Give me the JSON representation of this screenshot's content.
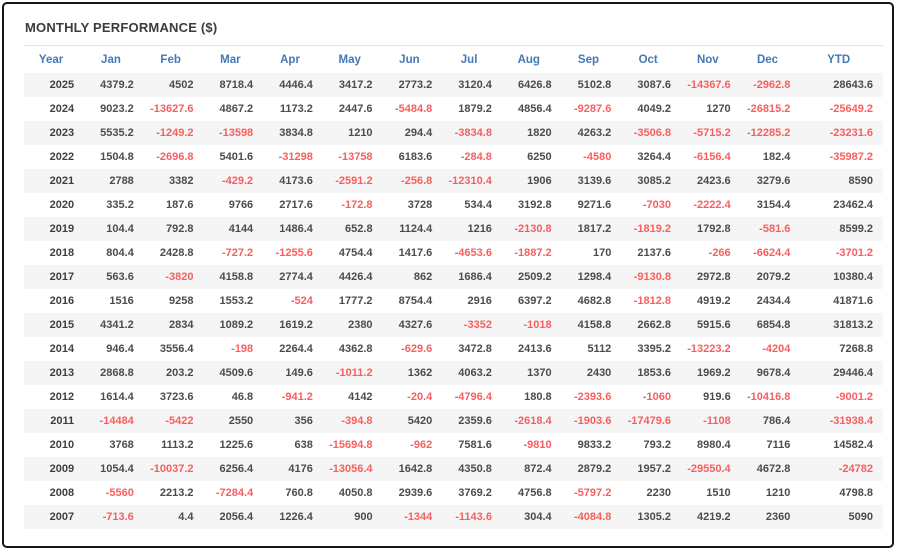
{
  "title": "MONTHLY PERFORMANCE ($)",
  "colors": {
    "header_blue": "#4478b6",
    "negative_red": "#f75f5f",
    "value_gray": "#4c4c4c",
    "year_dark": "#3f3f3f",
    "stripe": "#f5f5f5",
    "frame": "#151515"
  },
  "chart_data": {
    "type": "table",
    "title": "MONTHLY PERFORMANCE ($)",
    "columns": [
      "Year",
      "Jan",
      "Feb",
      "Mar",
      "Apr",
      "May",
      "Jun",
      "Jul",
      "Aug",
      "Sep",
      "Oct",
      "Nov",
      "Dec",
      "YTD"
    ],
    "rows": [
      {
        "year": "2025",
        "values": [
          "4379.2",
          "4502",
          "8718.4",
          "4446.4",
          "3417.2",
          "2773.2",
          "3120.4",
          "6426.8",
          "5102.8",
          "3087.6",
          "-14367.6",
          "-2962.8",
          "28643.6"
        ]
      },
      {
        "year": "2024",
        "values": [
          "9023.2",
          "-13627.6",
          "4867.2",
          "1173.2",
          "2447.6",
          "-5484.8",
          "1879.2",
          "4856.4",
          "-9287.6",
          "4049.2",
          "1270",
          "-26815.2",
          "-25649.2"
        ]
      },
      {
        "year": "2023",
        "values": [
          "5535.2",
          "-1249.2",
          "-13598",
          "3834.8",
          "1210",
          "294.4",
          "-3834.8",
          "1820",
          "4263.2",
          "-3506.8",
          "-5715.2",
          "-12285.2",
          "-23231.6"
        ]
      },
      {
        "year": "2022",
        "values": [
          "1504.8",
          "-2696.8",
          "5401.6",
          "-31298",
          "-13758",
          "6183.6",
          "-284.8",
          "6250",
          "-4580",
          "3264.4",
          "-6156.4",
          "182.4",
          "-35987.2"
        ]
      },
      {
        "year": "2021",
        "values": [
          "2788",
          "3382",
          "-429.2",
          "4173.6",
          "-2591.2",
          "-256.8",
          "-12310.4",
          "1906",
          "3139.6",
          "3085.2",
          "2423.6",
          "3279.6",
          "8590"
        ]
      },
      {
        "year": "2020",
        "values": [
          "335.2",
          "187.6",
          "9766",
          "2717.6",
          "-172.8",
          "3728",
          "534.4",
          "3192.8",
          "9271.6",
          "-7030",
          "-2222.4",
          "3154.4",
          "23462.4"
        ]
      },
      {
        "year": "2019",
        "values": [
          "104.4",
          "792.8",
          "4144",
          "1486.4",
          "652.8",
          "1124.4",
          "1216",
          "-2130.8",
          "1817.2",
          "-1819.2",
          "1792.8",
          "-581.6",
          "8599.2"
        ]
      },
      {
        "year": "2018",
        "values": [
          "804.4",
          "2428.8",
          "-727.2",
          "-1255.6",
          "4754.4",
          "1417.6",
          "-4653.6",
          "-1887.2",
          "170",
          "2137.6",
          "-266",
          "-6624.4",
          "-3701.2"
        ]
      },
      {
        "year": "2017",
        "values": [
          "563.6",
          "-3820",
          "4158.8",
          "2774.4",
          "4426.4",
          "862",
          "1686.4",
          "2509.2",
          "1298.4",
          "-9130.8",
          "2972.8",
          "2079.2",
          "10380.4"
        ]
      },
      {
        "year": "2016",
        "values": [
          "1516",
          "9258",
          "1553.2",
          "-524",
          "1777.2",
          "8754.4",
          "2916",
          "6397.2",
          "4682.8",
          "-1812.8",
          "4919.2",
          "2434.4",
          "41871.6"
        ]
      },
      {
        "year": "2015",
        "values": [
          "4341.2",
          "2834",
          "1089.2",
          "1619.2",
          "2380",
          "4327.6",
          "-3352",
          "-1018",
          "4158.8",
          "2662.8",
          "5915.6",
          "6854.8",
          "31813.2"
        ]
      },
      {
        "year": "2014",
        "values": [
          "946.4",
          "3556.4",
          "-198",
          "2264.4",
          "4362.8",
          "-629.6",
          "3472.8",
          "2413.6",
          "5112",
          "3395.2",
          "-13223.2",
          "-4204",
          "7268.8"
        ]
      },
      {
        "year": "2013",
        "values": [
          "2868.8",
          "203.2",
          "4509.6",
          "149.6",
          "-1011.2",
          "1362",
          "4063.2",
          "1370",
          "2430",
          "1853.6",
          "1969.2",
          "9678.4",
          "29446.4"
        ]
      },
      {
        "year": "2012",
        "values": [
          "1614.4",
          "3723.6",
          "46.8",
          "-941.2",
          "4142",
          "-20.4",
          "-4796.4",
          "180.8",
          "-2393.6",
          "-1060",
          "919.6",
          "-10416.8",
          "-9001.2"
        ]
      },
      {
        "year": "2011",
        "values": [
          "-14484",
          "-5422",
          "2550",
          "356",
          "-394.8",
          "5420",
          "2359.6",
          "-2618.4",
          "-1903.6",
          "-17479.6",
          "-1108",
          "786.4",
          "-31938.4"
        ]
      },
      {
        "year": "2010",
        "values": [
          "3768",
          "1113.2",
          "1225.6",
          "638",
          "-15694.8",
          "-962",
          "7581.6",
          "-9810",
          "9833.2",
          "793.2",
          "8980.4",
          "7116",
          "14582.4"
        ]
      },
      {
        "year": "2009",
        "values": [
          "1054.4",
          "-10037.2",
          "6256.4",
          "4176",
          "-13056.4",
          "1642.8",
          "4350.8",
          "872.4",
          "2879.2",
          "1957.2",
          "-29550.4",
          "4672.8",
          "-24782"
        ]
      },
      {
        "year": "2008",
        "values": [
          "-5560",
          "2213.2",
          "-7284.4",
          "760.8",
          "4050.8",
          "2939.6",
          "3769.2",
          "4756.8",
          "-5797.2",
          "2230",
          "1510",
          "1210",
          "4798.8"
        ]
      },
      {
        "year": "2007",
        "values": [
          "-713.6",
          "4.4",
          "2056.4",
          "1226.4",
          "900",
          "-1344",
          "-1143.6",
          "304.4",
          "-4084.8",
          "1305.2",
          "4219.2",
          "2360",
          "5090"
        ]
      }
    ]
  }
}
